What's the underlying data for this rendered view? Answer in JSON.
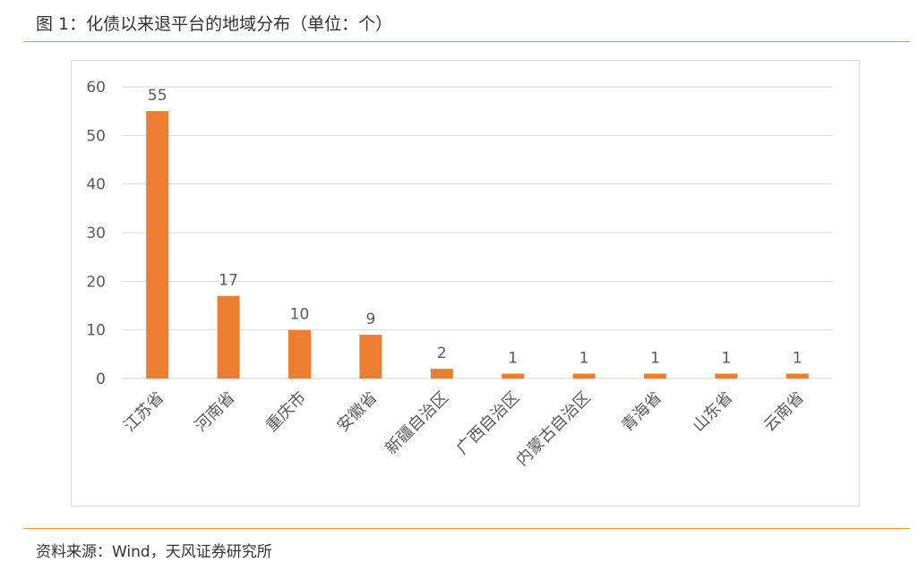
{
  "figure": {
    "title": "图 1：化债以来退平台的地域分布（单位：个）",
    "source": "资料来源：Wind，天风证券研究所"
  },
  "colors": {
    "bar": "#ed7d31",
    "gridline": "#d9d9d9",
    "rule": "#d9a53c",
    "text": "#595959"
  },
  "chart_data": {
    "type": "bar",
    "title": "",
    "xlabel": "",
    "ylabel": "",
    "categories": [
      "江苏省",
      "河南省",
      "重庆市",
      "安徽省",
      "新疆自治区",
      "广西自治区",
      "内蒙古自治区",
      "青海省",
      "山东省",
      "云南省"
    ],
    "values": [
      55,
      17,
      10,
      9,
      2,
      1,
      1,
      1,
      1,
      1
    ],
    "ylim": [
      0,
      60
    ],
    "yticks": [
      0,
      10,
      20,
      30,
      40,
      50,
      60
    ],
    "data_labels": true,
    "grid": "horizontal",
    "legend": "none"
  }
}
